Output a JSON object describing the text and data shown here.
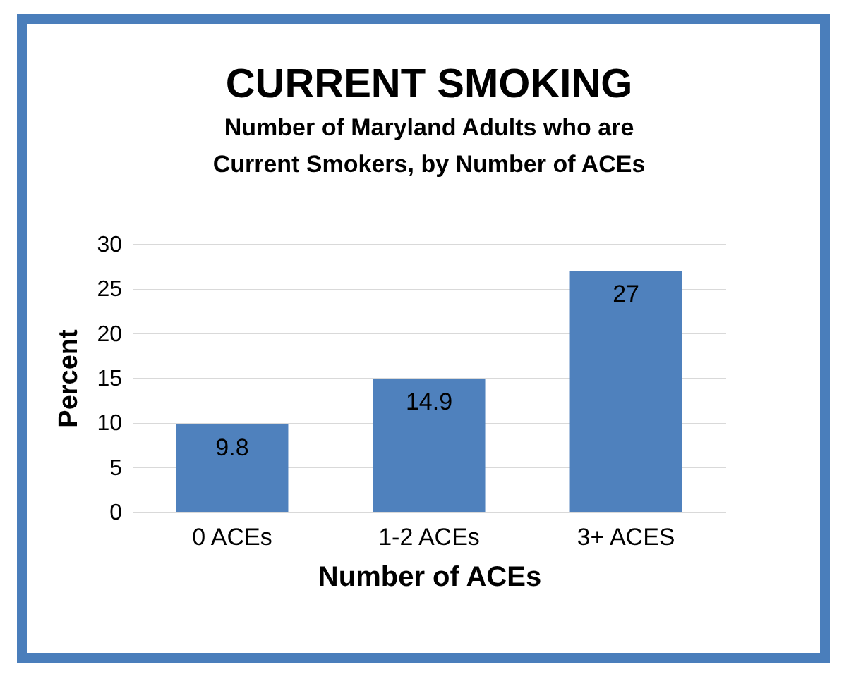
{
  "chart_data": {
    "type": "bar",
    "title": "CURRENT SMOKING",
    "subtitle": "Number of Maryland Adults who are\nCurrent Smokers, by Number of ACEs",
    "xlabel": "Number of ACEs",
    "ylabel": "Percent",
    "categories": [
      "0 ACEs",
      "1-2 ACEs",
      "3+ ACES"
    ],
    "values": [
      9.8,
      14.9,
      27
    ],
    "color": "#4f81bd",
    "ylim": [
      0,
      30
    ],
    "yticks": [
      0,
      5,
      10,
      15,
      20,
      25,
      30
    ],
    "grid": "y",
    "data_labels": true
  }
}
